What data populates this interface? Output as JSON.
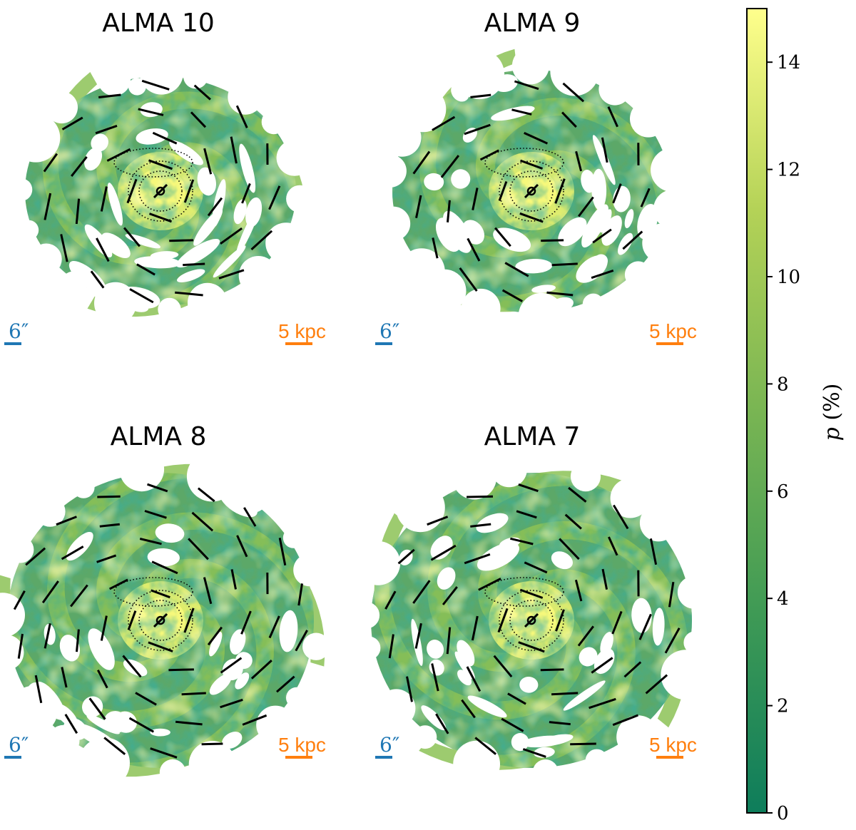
{
  "colors": {
    "colormap": [
      "#0e7d5b",
      "#3f9a55",
      "#79b553",
      "#b4d257",
      "#ffff8c"
    ],
    "vectors": "#000000",
    "angular_scale": "#1f77b4",
    "physical_scale": "#ff7f0e"
  },
  "chart_data": {
    "type": "heatmap",
    "panels": [
      {
        "title": "ALMA 10",
        "angular_scale_label": "6″",
        "physical_scale_label": "5 kpc"
      },
      {
        "title": "ALMA 9",
        "angular_scale_label": "6″",
        "physical_scale_label": "5 kpc"
      },
      {
        "title": "ALMA 8",
        "angular_scale_label": "6″",
        "physical_scale_label": "5 kpc"
      },
      {
        "title": "ALMA 7",
        "angular_scale_label": "6″",
        "physical_scale_label": "5 kpc"
      }
    ],
    "colorbar": {
      "label": "p (%)",
      "min": 0,
      "max": 15,
      "ticks": [
        0,
        2,
        4,
        6,
        8,
        10,
        12,
        14
      ],
      "tick_labels": [
        "0",
        "2",
        "4",
        "6",
        "8",
        "10",
        "12",
        "14"
      ]
    },
    "overlays": "polarization vectors (black dashes) and dotted contours"
  }
}
